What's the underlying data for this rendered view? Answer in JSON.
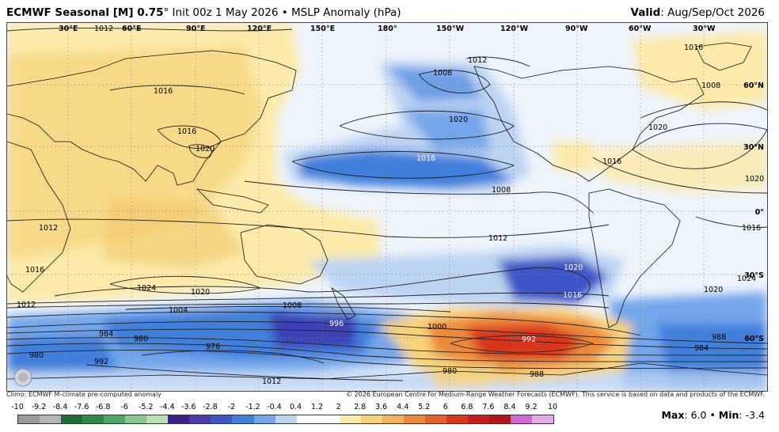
{
  "header": {
    "title_bold": "ECMWF Seasonal [M] 0.75",
    "title_rest": "° Init 00z 1 May 2026 • MSLP Anomaly (hPa)",
    "valid_label": "Valid",
    "valid_value": ": Aug/Sep/Oct 2026"
  },
  "map": {
    "longitude_labels": [
      "30°E",
      "60°E",
      "90°E",
      "120°E",
      "150°E",
      "180°",
      "150°W",
      "120°W",
      "90°W",
      "60°W",
      "30°W"
    ],
    "latitude_labels": [
      "60°N",
      "30°N",
      "0°",
      "30°S",
      "60°S"
    ],
    "isobar_labels": [
      "1012",
      "1016",
      "1016",
      "1020",
      "1008",
      "1012",
      "1020",
      "1016",
      "1008",
      "1012",
      "1016",
      "1008",
      "1020",
      "1016",
      "1016",
      "1012",
      "1020",
      "1016",
      "1024",
      "1020",
      "1008",
      "1004",
      "1012",
      "1020",
      "984",
      "980",
      "976",
      "996",
      "1000",
      "992",
      "988",
      "984",
      "980",
      "988",
      "980",
      "1012",
      "992",
      "1024",
      "1020",
      "1016"
    ],
    "colors": {
      "ocean_neutral": "#eef4fb",
      "positive_light": "#fbeaa9",
      "positive_mid": "#f6d27a",
      "negative_light": "#bcd3f2",
      "negative_mid": "#6f9fe6",
      "negative_strong": "#2f5fd0",
      "negative_deep": "#3d3fb6",
      "positive_strong": "#e8501c",
      "positive_core": "#d01e1e",
      "land_line": "#111111",
      "isobar": "#222222"
    }
  },
  "footer": {
    "climo_note": "Climo: ECMWF M-climate pre-computed anomaly",
    "copyright": "© 2026 European Centre for Medium-Range Weather Forecasts (ECMWF). This service is based on data and products of the ECMWF."
  },
  "colorbar": {
    "ticks": [
      "-10",
      "-9.2",
      "-8.4",
      "-7.6",
      "-6.8",
      "-6",
      "-5.2",
      "-4.4",
      "-3.6",
      "-2.8",
      "-2",
      "-1.2",
      "-0.4",
      "0.4",
      "1.2",
      "2",
      "2.8",
      "3.6",
      "4.4",
      "5.2",
      "6",
      "6.8",
      "7.6",
      "8.4",
      "9.2",
      "10"
    ],
    "colors": [
      "#9a9a9a",
      "#b5b5b5",
      "#1e6b3a",
      "#2f8a47",
      "#4fa85f",
      "#86c98a",
      "#b9dfb3",
      "#3b1f8a",
      "#4b3bb0",
      "#3c55c8",
      "#3f7fdc",
      "#74a6ea",
      "#bcd3f2",
      "#ffffff",
      "#ffffff",
      "#fbeaa9",
      "#f6d27a",
      "#f2b35a",
      "#ec8a3a",
      "#e5602a",
      "#d8361f",
      "#c81c1c",
      "#b01616",
      "#d26ad6",
      "#e7a9e6"
    ]
  },
  "stats": {
    "max_label": "Max",
    "max_value": ": 6.0",
    "sep": " • ",
    "min_label": "Min",
    "min_value": ": -3.4"
  }
}
